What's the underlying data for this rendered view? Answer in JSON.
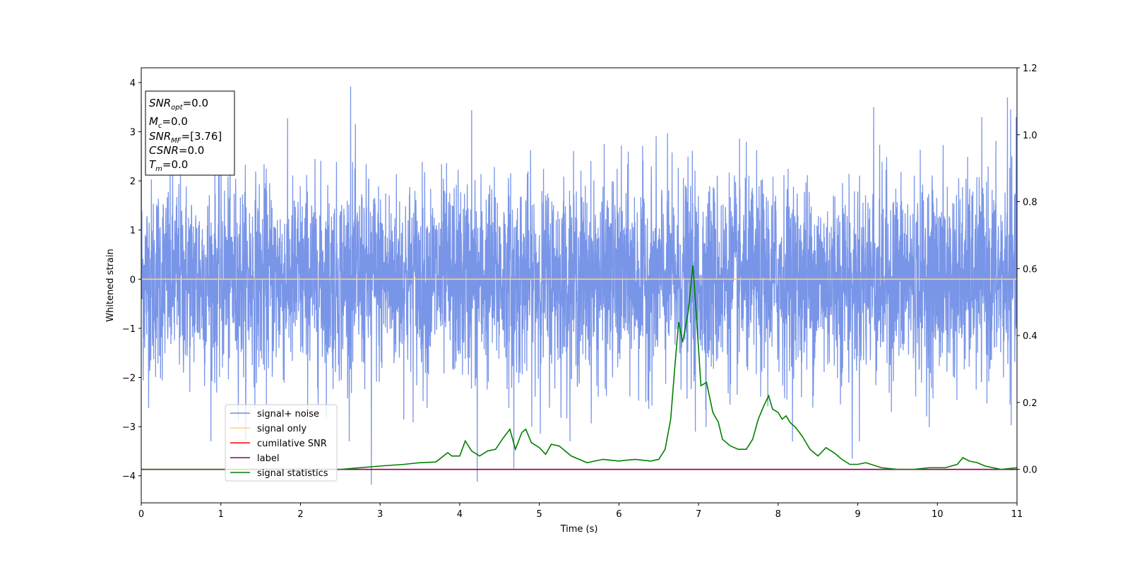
{
  "chart_data": {
    "type": "line",
    "xlabel": "Time (s)",
    "ylabel": "Whitened strain",
    "xlim": [
      0,
      11
    ],
    "ylim": [
      -4.55,
      4.3
    ],
    "y2lim": [
      -0.1,
      1.2
    ],
    "x_ticks": [
      0,
      1,
      2,
      3,
      4,
      5,
      6,
      7,
      8,
      9,
      10,
      11
    ],
    "y_ticks": [
      -4,
      -3,
      -2,
      -1,
      0,
      1,
      2,
      3,
      4
    ],
    "y2_ticks": [
      "0.0",
      "0.2",
      "0.4",
      "0.6",
      "0.8",
      "1.0",
      "1.2"
    ],
    "grid": false,
    "legend_position": "lower-left",
    "colors": {
      "noise": "#6a89e6",
      "signal_only": "#ffd27a",
      "cumulative_snr": "#ff0000",
      "label": "#800080",
      "statistics": "#008000"
    },
    "info_box": {
      "snr_opt": {
        "symbol": "SNR",
        "sub": "opt",
        "value": "=0.0"
      },
      "mc": {
        "symbol": "M",
        "sub": "c",
        "value": "=0.0"
      },
      "snr_mf": {
        "symbol": "SNR",
        "sub": "MF",
        "value": "=[3.76]"
      },
      "csnr": {
        "symbol": "CSNR",
        "sub": "",
        "value": "=0.0"
      },
      "tm": {
        "symbol": "T",
        "sub": "m",
        "value": "=0.0"
      }
    },
    "series": [
      {
        "name": "signal+ noise",
        "axis": "left",
        "noise_sigma": 1.0,
        "notable_spikes": [
          {
            "x": 0.0,
            "y": 3.6
          },
          {
            "x": 2.63,
            "y": 3.92
          },
          {
            "x": 2.89,
            "y": -4.18
          },
          {
            "x": 4.15,
            "y": 3.44
          },
          {
            "x": 4.22,
            "y": -4.12
          },
          {
            "x": 4.68,
            "y": -3.85
          },
          {
            "x": 6.96,
            "y": -3.1
          },
          {
            "x": 8.93,
            "y": -3.65
          },
          {
            "x": 9.2,
            "y": 3.5
          },
          {
            "x": 10.88,
            "y": 3.7
          },
          {
            "x": 10.92,
            "y": 3.45
          }
        ]
      },
      {
        "name": "signal only",
        "axis": "left",
        "x": [
          0,
          11
        ],
        "y": [
          0,
          0
        ]
      },
      {
        "name": "cumilative SNR",
        "axis": "right",
        "x": [
          0,
          11
        ],
        "y": [
          0,
          0
        ]
      },
      {
        "name": "label",
        "axis": "right",
        "x": [
          0,
          11
        ],
        "y": [
          0,
          0
        ]
      },
      {
        "name": "signal statistics",
        "axis": "right",
        "x": [
          0,
          0.5,
          1.0,
          1.5,
          2.0,
          2.5,
          3.0,
          3.3,
          3.5,
          3.7,
          3.85,
          3.9,
          4.0,
          4.07,
          4.15,
          4.25,
          4.35,
          4.45,
          4.55,
          4.63,
          4.7,
          4.78,
          4.83,
          4.9,
          5.0,
          5.08,
          5.15,
          5.25,
          5.4,
          5.6,
          5.8,
          6.0,
          6.2,
          6.4,
          6.5,
          6.58,
          6.65,
          6.7,
          6.75,
          6.8,
          6.87,
          6.93,
          6.97,
          7.03,
          7.1,
          7.18,
          7.25,
          7.3,
          7.4,
          7.5,
          7.6,
          7.68,
          7.75,
          7.82,
          7.88,
          7.93,
          8.0,
          8.05,
          8.1,
          8.15,
          8.22,
          8.3,
          8.4,
          8.5,
          8.6,
          8.7,
          8.8,
          8.9,
          9.0,
          9.1,
          9.3,
          9.5,
          9.7,
          9.9,
          10.1,
          10.25,
          10.32,
          10.4,
          10.5,
          10.6,
          10.8,
          11.0
        ],
        "y": [
          0.0,
          0.0,
          0.0,
          0.0,
          0.0,
          0.0,
          0.01,
          0.015,
          0.02,
          0.022,
          0.05,
          0.04,
          0.04,
          0.085,
          0.055,
          0.04,
          0.055,
          0.06,
          0.095,
          0.12,
          0.06,
          0.11,
          0.12,
          0.08,
          0.065,
          0.045,
          0.075,
          0.07,
          0.04,
          0.02,
          0.03,
          0.025,
          0.03,
          0.025,
          0.03,
          0.06,
          0.15,
          0.3,
          0.44,
          0.38,
          0.47,
          0.61,
          0.47,
          0.25,
          0.26,
          0.17,
          0.14,
          0.09,
          0.07,
          0.06,
          0.06,
          0.09,
          0.15,
          0.19,
          0.22,
          0.18,
          0.17,
          0.15,
          0.16,
          0.14,
          0.125,
          0.1,
          0.06,
          0.04,
          0.065,
          0.05,
          0.03,
          0.015,
          0.015,
          0.02,
          0.005,
          0.0,
          0.0,
          0.005,
          0.005,
          0.015,
          0.035,
          0.025,
          0.02,
          0.01,
          0.0,
          0.005
        ]
      }
    ]
  }
}
